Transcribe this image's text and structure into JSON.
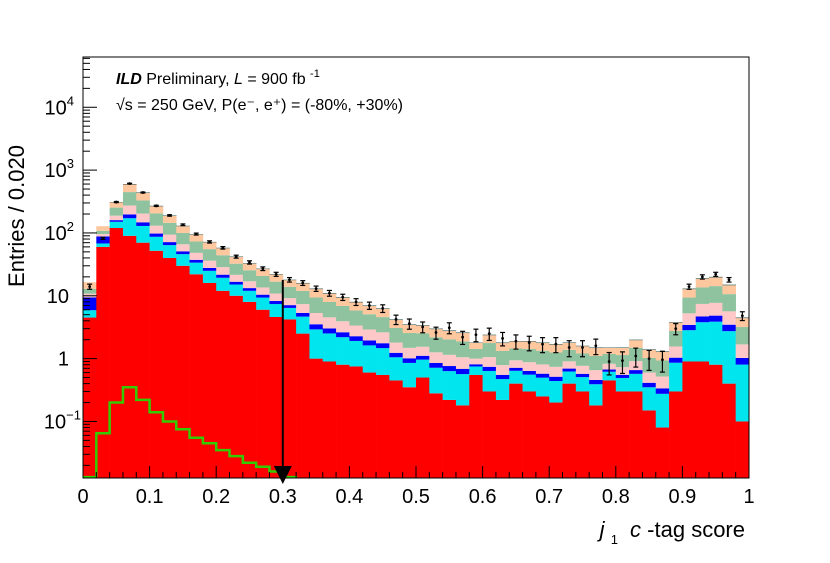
{
  "chart_data": {
    "type": "bar",
    "subtype": "stacked-histogram",
    "title": "",
    "xlabel_prefix": "j",
    "xlabel_sub": "1",
    "xlabel_italic": "c",
    "xlabel_suffix": "-tag score",
    "ylabel": "Entries / 0.020",
    "xlim": [
      0,
      1
    ],
    "ylim_log10": [
      -1.9,
      4.8
    ],
    "x_ticks": [
      "0",
      "0.1",
      "0.2",
      "0.3",
      "0.4",
      "0.5",
      "0.6",
      "0.7",
      "0.8",
      "0.9",
      "1"
    ],
    "y_ticks": [
      {
        "base": "10",
        "exp": "−1",
        "log": -1
      },
      {
        "base": "1",
        "exp": "",
        "log": 0
      },
      {
        "base": "10",
        "exp": "",
        "log": 1
      },
      {
        "base": "10",
        "exp": "2",
        "log": 2
      },
      {
        "base": "10",
        "exp": "3",
        "log": 3
      },
      {
        "base": "10",
        "exp": "4",
        "log": 4
      }
    ],
    "annotation": {
      "line1_bold": "ILD",
      "line1_rest": " Preliminary, ",
      "line1_lumi_symbol": "L",
      "line1_lumi_value": " = 900 fb",
      "line1_lumi_exp": "-1",
      "line2": "√s = 250 GeV, P(e⁻, e⁺) = (-80%, +30%)"
    },
    "cut_line_x": 0.3,
    "bin_edges_step": 0.02,
    "stack_colors": [
      "#ff0000",
      "#00e5ee",
      "#0000ff",
      "#ffc8c8",
      "#8fc3a0",
      "#fec79e",
      "#808080",
      "#cc33cc",
      "#0e3a3a"
    ],
    "stack_totals": [
      14,
      80,
      310,
      600,
      440,
      270,
      190,
      130,
      95,
      72,
      58,
      42,
      33,
      27,
      22,
      18,
      16,
      13,
      11,
      9.5,
      8,
      7,
      6.3,
      4.2,
      3.5,
      3.4,
      3.0,
      2.8,
      2.6,
      1.8,
      2.4,
      1.8,
      1.9,
      1.9,
      1.8,
      1.7,
      1.8,
      1.6,
      1.5,
      1.5,
      1.5,
      2.0,
      1.4,
      1.3,
      3.8,
      13,
      19,
      20,
      15,
      4.5
    ],
    "signal_totals": [
      4.5,
      60,
      120,
      90,
      70,
      52,
      40,
      30,
      22,
      16,
      12,
      10,
      8,
      6,
      4.6,
      4.2,
      2.5,
      1.0,
      0.9,
      0.8,
      0.75,
      0.6,
      0.55,
      0.45,
      0.35,
      0.5,
      0.28,
      0.22,
      0.18,
      0.55,
      0.3,
      0.22,
      0.4,
      0.3,
      0.25,
      0.2,
      0.4,
      0.3,
      0.18,
      0.45,
      0.3,
      0.3,
      0.15,
      0.08,
      0.3,
      0.9,
      0.9,
      0.8,
      0.4,
      0.1
    ],
    "data_points": [
      14,
      82,
      310,
      610,
      440,
      270,
      190,
      135,
      96,
      72,
      58,
      42,
      34,
      27,
      22,
      18,
      16,
      13,
      11,
      9.5,
      8,
      7,
      6.3,
      4.2,
      3.6,
      3.2,
      2.6,
      3.1,
      2.2,
      2.4,
      2.5,
      2.1,
      1.9,
      1.8,
      1.7,
      1.7,
      1.5,
      1.5,
      1.6,
      0.9,
      0.93,
      1.1,
      1.0,
      0.96,
      3.0,
      14,
      20,
      22,
      18,
      4.8
    ],
    "green_curve": [
      0.013,
      0.065,
      0.2,
      0.35,
      0.22,
      0.14,
      0.1,
      0.075,
      0.055,
      0.045,
      0.035,
      0.028,
      0.022,
      0.019,
      0.016,
      0.013,
      0.01,
      0.008
    ]
  }
}
